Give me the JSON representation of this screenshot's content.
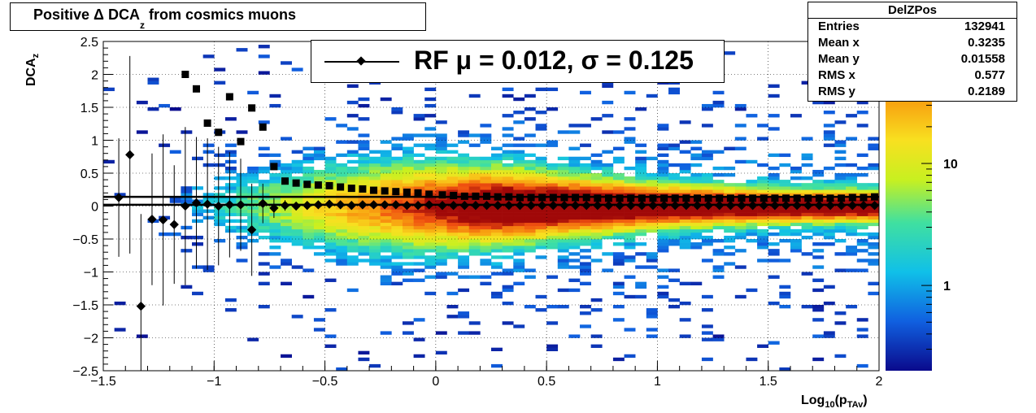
{
  "title": {
    "prefix": "Positive Δ DCA",
    "sub": "z",
    "suffix": " from cosmics muons"
  },
  "stats": {
    "name": "DelZPos",
    "rows": [
      {
        "label": "Entries",
        "value": "132941"
      },
      {
        "label": "Mean x",
        "value": "0.3235"
      },
      {
        "label": "Mean y",
        "value": "0.01558"
      },
      {
        "label": "RMS x",
        "value": "0.577"
      },
      {
        "label": "RMS y",
        "value": "0.2189"
      }
    ]
  },
  "legend": {
    "text": "RF μ =  0.012, σ =   0.125"
  },
  "axes": {
    "x_title_main": "Log",
    "x_title_sub1": "10",
    "x_title_mid": "(p",
    "x_title_sub2": "TAv",
    "x_title_end": ")",
    "y_title_main": "DCA",
    "y_title_sub": "z"
  },
  "colors": {
    "frame": "#000000",
    "markers": "#000000",
    "grid": "#000000"
  },
  "chart_data": {
    "type": "heatmap",
    "xlim": [
      -1.5,
      2
    ],
    "ylim": [
      -2.5,
      2.5
    ],
    "log_color_scale": true,
    "grid": true,
    "x_ticks": [
      "−1.5",
      "−1",
      "−0.5",
      "0",
      "0.5",
      "1",
      "1.5",
      "2"
    ],
    "x_tick_values": [
      -1.5,
      -1,
      -0.5,
      0,
      0.5,
      1,
      1.5,
      2
    ],
    "y_ticks": [
      "−2.5",
      "−2",
      "−1.5",
      "−1",
      "−0.5",
      "0",
      "0.5",
      "1",
      "1.5",
      "2",
      "2.5"
    ],
    "y_tick_values": [
      -2.5,
      -2,
      -1.5,
      -1,
      -0.5,
      0,
      0.5,
      1,
      1.5,
      2,
      2.5
    ],
    "z_ticks": [
      {
        "label": "1",
        "value": 1
      },
      {
        "label": "10",
        "value": 10
      }
    ],
    "mean_series": {
      "marker": "diamond",
      "x": [
        -1.43,
        -1.38,
        -1.33,
        -1.28,
        -1.23,
        -1.18,
        -1.13,
        -1.08,
        -1.03,
        -0.98,
        -0.93,
        -0.88,
        -0.83,
        -0.78,
        -0.73,
        -0.68,
        -0.63,
        -0.58,
        -0.53,
        -0.48,
        -0.43,
        -0.38,
        -0.33,
        -0.28,
        -0.23,
        -0.18,
        -0.13,
        -0.08,
        -0.03,
        0.03,
        0.08,
        0.13,
        0.18,
        0.23,
        0.28,
        0.33,
        0.38,
        0.43,
        0.48,
        0.53,
        0.58,
        0.63,
        0.68,
        0.73,
        0.78,
        0.83,
        0.88,
        0.93,
        0.98,
        1.03,
        1.08,
        1.13,
        1.18,
        1.23,
        1.28,
        1.33,
        1.38,
        1.43,
        1.48,
        1.53,
        1.58,
        1.63,
        1.68,
        1.73,
        1.78,
        1.83,
        1.88,
        1.93,
        1.98
      ],
      "y": [
        0.13,
        0.78,
        -1.52,
        -0.2,
        -0.21,
        -0.28,
        0.0,
        0.05,
        0.03,
        0.0,
        0.02,
        0.02,
        -0.36,
        0.04,
        -0.03,
        0.01,
        0.0,
        0.01,
        0.02,
        0.03,
        0.02,
        0.01,
        0.02,
        0.02,
        0.02,
        0.02,
        0.01,
        0.01,
        0.02,
        0.01,
        0.01,
        0.01,
        0.01,
        0.01,
        0.01,
        0.01,
        0.01,
        0.01,
        0.01,
        0.01,
        0.01,
        0.01,
        0.01,
        0.01,
        0.01,
        0.01,
        0.01,
        0.01,
        0.01,
        0.01,
        0.01,
        0.01,
        0.01,
        0.01,
        0.01,
        0.01,
        0.01,
        0.01,
        0.01,
        0.01,
        0.01,
        0.01,
        0.01,
        0.01,
        0.01,
        0.01,
        0.01,
        0.01,
        0.01
      ],
      "err": [
        0.9,
        1.5,
        1.4,
        1.0,
        1.3,
        0.9,
        1.2,
        1.0,
        1.0,
        0.9,
        0.8,
        0.7,
        0.7,
        0.3,
        0.15,
        0.08,
        0.05,
        0.04,
        0.03,
        0.03,
        0.02,
        0.02,
        0.02,
        0.02,
        0.02,
        0.02,
        0.02,
        0.02,
        0.02,
        0.02,
        0.02,
        0.02,
        0.02,
        0.02,
        0.02,
        0.02,
        0.02,
        0.02,
        0.02,
        0.02,
        0.02,
        0.02,
        0.02,
        0.02,
        0.02,
        0.02,
        0.02,
        0.02,
        0.02,
        0.02,
        0.02,
        0.02,
        0.02,
        0.02,
        0.02,
        0.02,
        0.02,
        0.02,
        0.02,
        0.02,
        0.02,
        0.02,
        0.02,
        0.02,
        0.02,
        0.02,
        0.02,
        0.02,
        0.02
      ]
    },
    "rms_series": {
      "marker": "square",
      "x": [
        -1.13,
        -1.08,
        -1.03,
        -0.98,
        -0.93,
        -0.88,
        -0.83,
        -0.78,
        -0.73,
        -0.68,
        -0.63,
        -0.58,
        -0.53,
        -0.48,
        -0.43,
        -0.38,
        -0.33,
        -0.28,
        -0.23,
        -0.18,
        -0.13,
        -0.08,
        -0.03,
        0.03,
        0.08,
        0.13,
        0.18,
        0.23,
        0.28,
        0.33,
        0.38,
        0.43,
        0.48,
        0.53,
        0.58,
        0.63,
        0.68,
        0.73,
        0.78,
        0.83,
        0.88,
        0.93,
        0.98,
        1.03,
        1.08,
        1.13,
        1.18,
        1.23,
        1.28,
        1.33,
        1.38,
        1.43,
        1.48,
        1.53,
        1.58,
        1.63,
        1.68,
        1.73,
        1.78,
        1.83,
        1.88,
        1.93,
        1.98
      ],
      "y": [
        2.0,
        1.78,
        1.26,
        1.12,
        1.66,
        0.98,
        1.49,
        1.2,
        0.6,
        0.38,
        0.35,
        0.33,
        0.32,
        0.31,
        0.29,
        0.27,
        0.26,
        0.24,
        0.23,
        0.22,
        0.21,
        0.2,
        0.18,
        0.17,
        0.16,
        0.15,
        0.15,
        0.15,
        0.14,
        0.14,
        0.13,
        0.13,
        0.13,
        0.13,
        0.13,
        0.13,
        0.13,
        0.12,
        0.12,
        0.12,
        0.12,
        0.12,
        0.12,
        0.12,
        0.12,
        0.12,
        0.12,
        0.12,
        0.12,
        0.12,
        0.12,
        0.12,
        0.12,
        0.12,
        0.12,
        0.12,
        0.12,
        0.12,
        0.12,
        0.12,
        0.13,
        0.13,
        0.14
      ]
    },
    "fit_lines": [
      {
        "y": 0.14,
        "x_from": -1.5,
        "x_to": 2
      },
      {
        "y": 0.02,
        "x_from": -1.5,
        "x_to": 2
      }
    ]
  }
}
